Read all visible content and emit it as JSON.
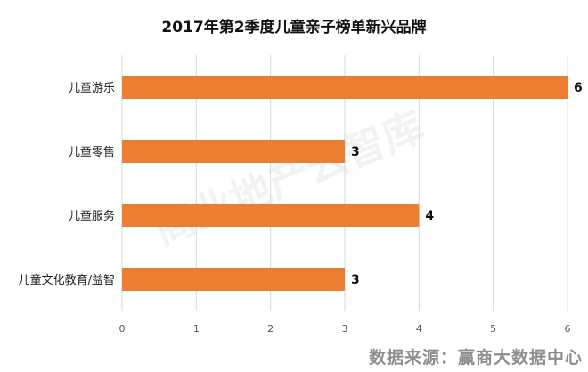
{
  "chart_data": {
    "type": "bar",
    "orientation": "horizontal",
    "title": "2017年第2季度儿童亲子榜单新兴品牌",
    "categories": [
      "儿童游乐",
      "儿童零售",
      "儿童服务",
      "儿童文化教育/益智"
    ],
    "values": [
      6,
      3,
      4,
      3
    ],
    "xlim": [
      0,
      6
    ],
    "xticks": [
      0,
      1,
      2,
      3,
      4,
      5,
      6
    ],
    "grid": true,
    "bar_color": "#ED7D31",
    "data_labels": true
  },
  "source_text": "数据来源：赢商大数据中心",
  "watermark_text": "商业地产云智库"
}
